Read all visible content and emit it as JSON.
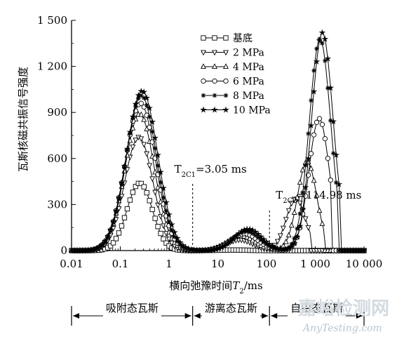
{
  "chart_data": {
    "type": "line",
    "xscale": "log",
    "xlim": [
      0.01,
      10000
    ],
    "ylim": [
      0,
      1500
    ],
    "xlabel_prefix": "横向弛豫时间",
    "xlabel_var": "T",
    "xlabel_sub": "2",
    "xlabel_suffix": "/ms",
    "ylabel": "瓦斯核磁共振信号强度",
    "xticks": [
      {
        "value": 0.01,
        "label": "0.01"
      },
      {
        "value": 0.1,
        "label": "0.1"
      },
      {
        "value": 1,
        "label": "1"
      },
      {
        "value": 10,
        "label": "10"
      },
      {
        "value": 100,
        "label": "100"
      },
      {
        "value": 1000,
        "label": "1 000"
      },
      {
        "value": 10000,
        "label": "10 000"
      }
    ],
    "yticks": [
      {
        "value": 0,
        "label": "0"
      },
      {
        "value": 300,
        "label": "300"
      },
      {
        "value": 600,
        "label": "600"
      },
      {
        "value": 900,
        "label": "900"
      },
      {
        "value": 1200,
        "label": "1 200"
      },
      {
        "value": 1500,
        "label": "1 500"
      }
    ],
    "series": [
      {
        "name": "基底",
        "marker": "square",
        "peaks": [
          {
            "center": 0.25,
            "height": 440,
            "width": 0.26
          },
          {
            "center": 20,
            "height": 4,
            "width": 0.3
          }
        ],
        "range": [
          0.01,
          10000
        ]
      },
      {
        "name": "2 MPa",
        "marker": "triangle-down",
        "peaks": [
          {
            "center": 0.24,
            "height": 740,
            "width": 0.29
          },
          {
            "center": 28,
            "height": 70,
            "width": 0.28
          },
          {
            "center": 400,
            "height": 340,
            "width": 0.2
          }
        ],
        "range": [
          0.01,
          800
        ]
      },
      {
        "name": "4 MPa",
        "marker": "triangle-up",
        "peaks": [
          {
            "center": 0.25,
            "height": 890,
            "width": 0.3
          },
          {
            "center": 30,
            "height": 95,
            "width": 0.28
          },
          {
            "center": 680,
            "height": 580,
            "width": 0.2
          }
        ],
        "range": [
          0.01,
          1500
        ]
      },
      {
        "name": "6 MPa",
        "marker": "circle",
        "peaks": [
          {
            "center": 0.26,
            "height": 960,
            "width": 0.31
          },
          {
            "center": 35,
            "height": 110,
            "width": 0.28
          },
          {
            "center": 1200,
            "height": 860,
            "width": 0.21
          }
        ],
        "range": [
          0.01,
          2200
        ]
      },
      {
        "name": "8 MPa",
        "marker": "asterisk",
        "peaks": [
          {
            "center": 0.27,
            "height": 1010,
            "width": 0.31
          },
          {
            "center": 38,
            "height": 125,
            "width": 0.28
          },
          {
            "center": 1250,
            "height": 1380,
            "width": 0.22
          }
        ],
        "range": [
          0.01,
          3000
        ]
      },
      {
        "name": "10 MPa",
        "marker": "star",
        "peaks": [
          {
            "center": 0.28,
            "height": 1040,
            "width": 0.32
          },
          {
            "center": 42,
            "height": 140,
            "width": 0.28
          },
          {
            "center": 1400,
            "height": 1420,
            "width": 0.22
          }
        ],
        "range": [
          0.01,
          3400
        ]
      }
    ],
    "legend_position": "top-right",
    "cutoffs": [
      {
        "value": 3.05,
        "label_base": "T",
        "label_sub": "2C1",
        "label_rest": "=3.05 ms"
      },
      {
        "value": 114.98,
        "label_base": "T",
        "label_sub": "2C2",
        "label_rest": "=114.98 ms"
      }
    ],
    "regions": [
      {
        "label": "吸附态瓦斯",
        "from": 0.01,
        "to": 3.05
      },
      {
        "label": "游离态瓦斯",
        "from": 3.05,
        "to": 114.98
      },
      {
        "label": "自由态瓦斯",
        "from": 114.98,
        "to": 10000
      }
    ]
  },
  "watermark": {
    "cn": "嘉峪检测网",
    "en": "AnyTesting.com"
  }
}
